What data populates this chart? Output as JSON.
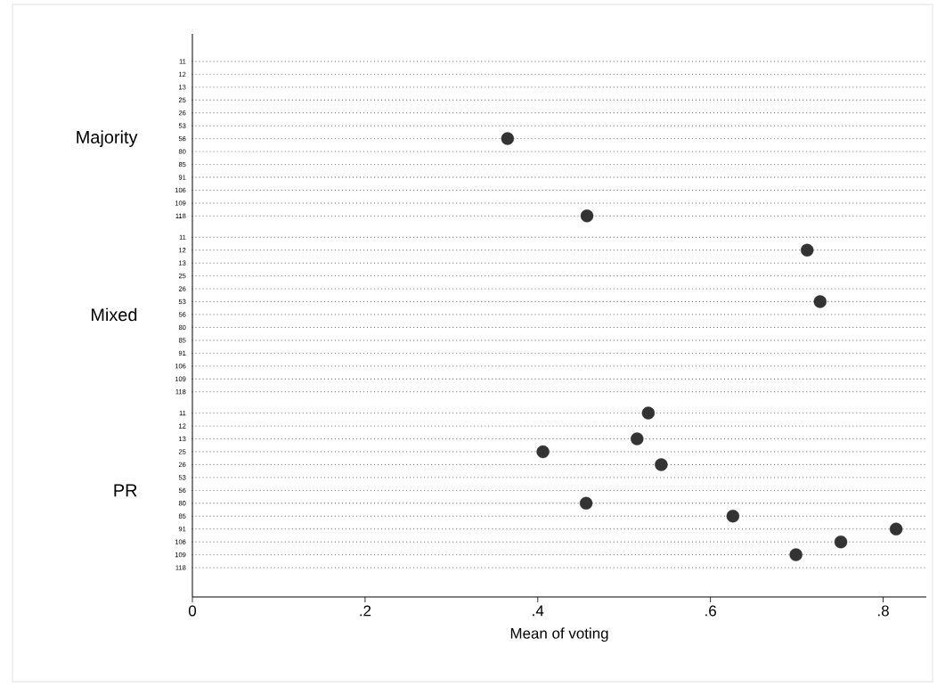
{
  "chart_data": {
    "type": "scatter",
    "orientation": "horizontal",
    "xlabel": "Mean of voting",
    "annotations": [
      "Majority",
      "Mixed",
      "PR"
    ],
    "categories": [
      "11",
      "12",
      "13",
      "25",
      "26",
      "53",
      "56",
      "80",
      "85",
      "91",
      "106",
      "109",
      "118",
      "11",
      "12",
      "13",
      "25",
      "26",
      "53",
      "56",
      "80",
      "85",
      "91",
      "106",
      "109",
      "118",
      "11",
      "12",
      "13",
      "25",
      "26",
      "53",
      "56",
      "80",
      "85",
      "91",
      "106",
      "109",
      "118"
    ],
    "values": [
      null,
      null,
      null,
      null,
      null,
      null,
      0.365,
      null,
      null,
      null,
      null,
      null,
      0.457,
      null,
      0.712,
      null,
      null,
      null,
      0.727,
      null,
      null,
      null,
      null,
      null,
      null,
      null,
      0.528,
      null,
      0.515,
      0.406,
      0.543,
      null,
      null,
      0.456,
      0.626,
      0.815,
      0.751,
      0.699,
      null
    ],
    "color": "#333333",
    "marker": "circle",
    "grid": "y",
    "xlim": [
      0,
      0.85
    ],
    "xticks": [
      0,
      {
        "value": 0.2,
        "label": ".2"
      },
      {
        "value": 0.4,
        "label": ".4"
      },
      {
        "value": 0.6,
        "label": ".6"
      },
      {
        "value": 0.8,
        "label": ".8"
      }
    ]
  }
}
